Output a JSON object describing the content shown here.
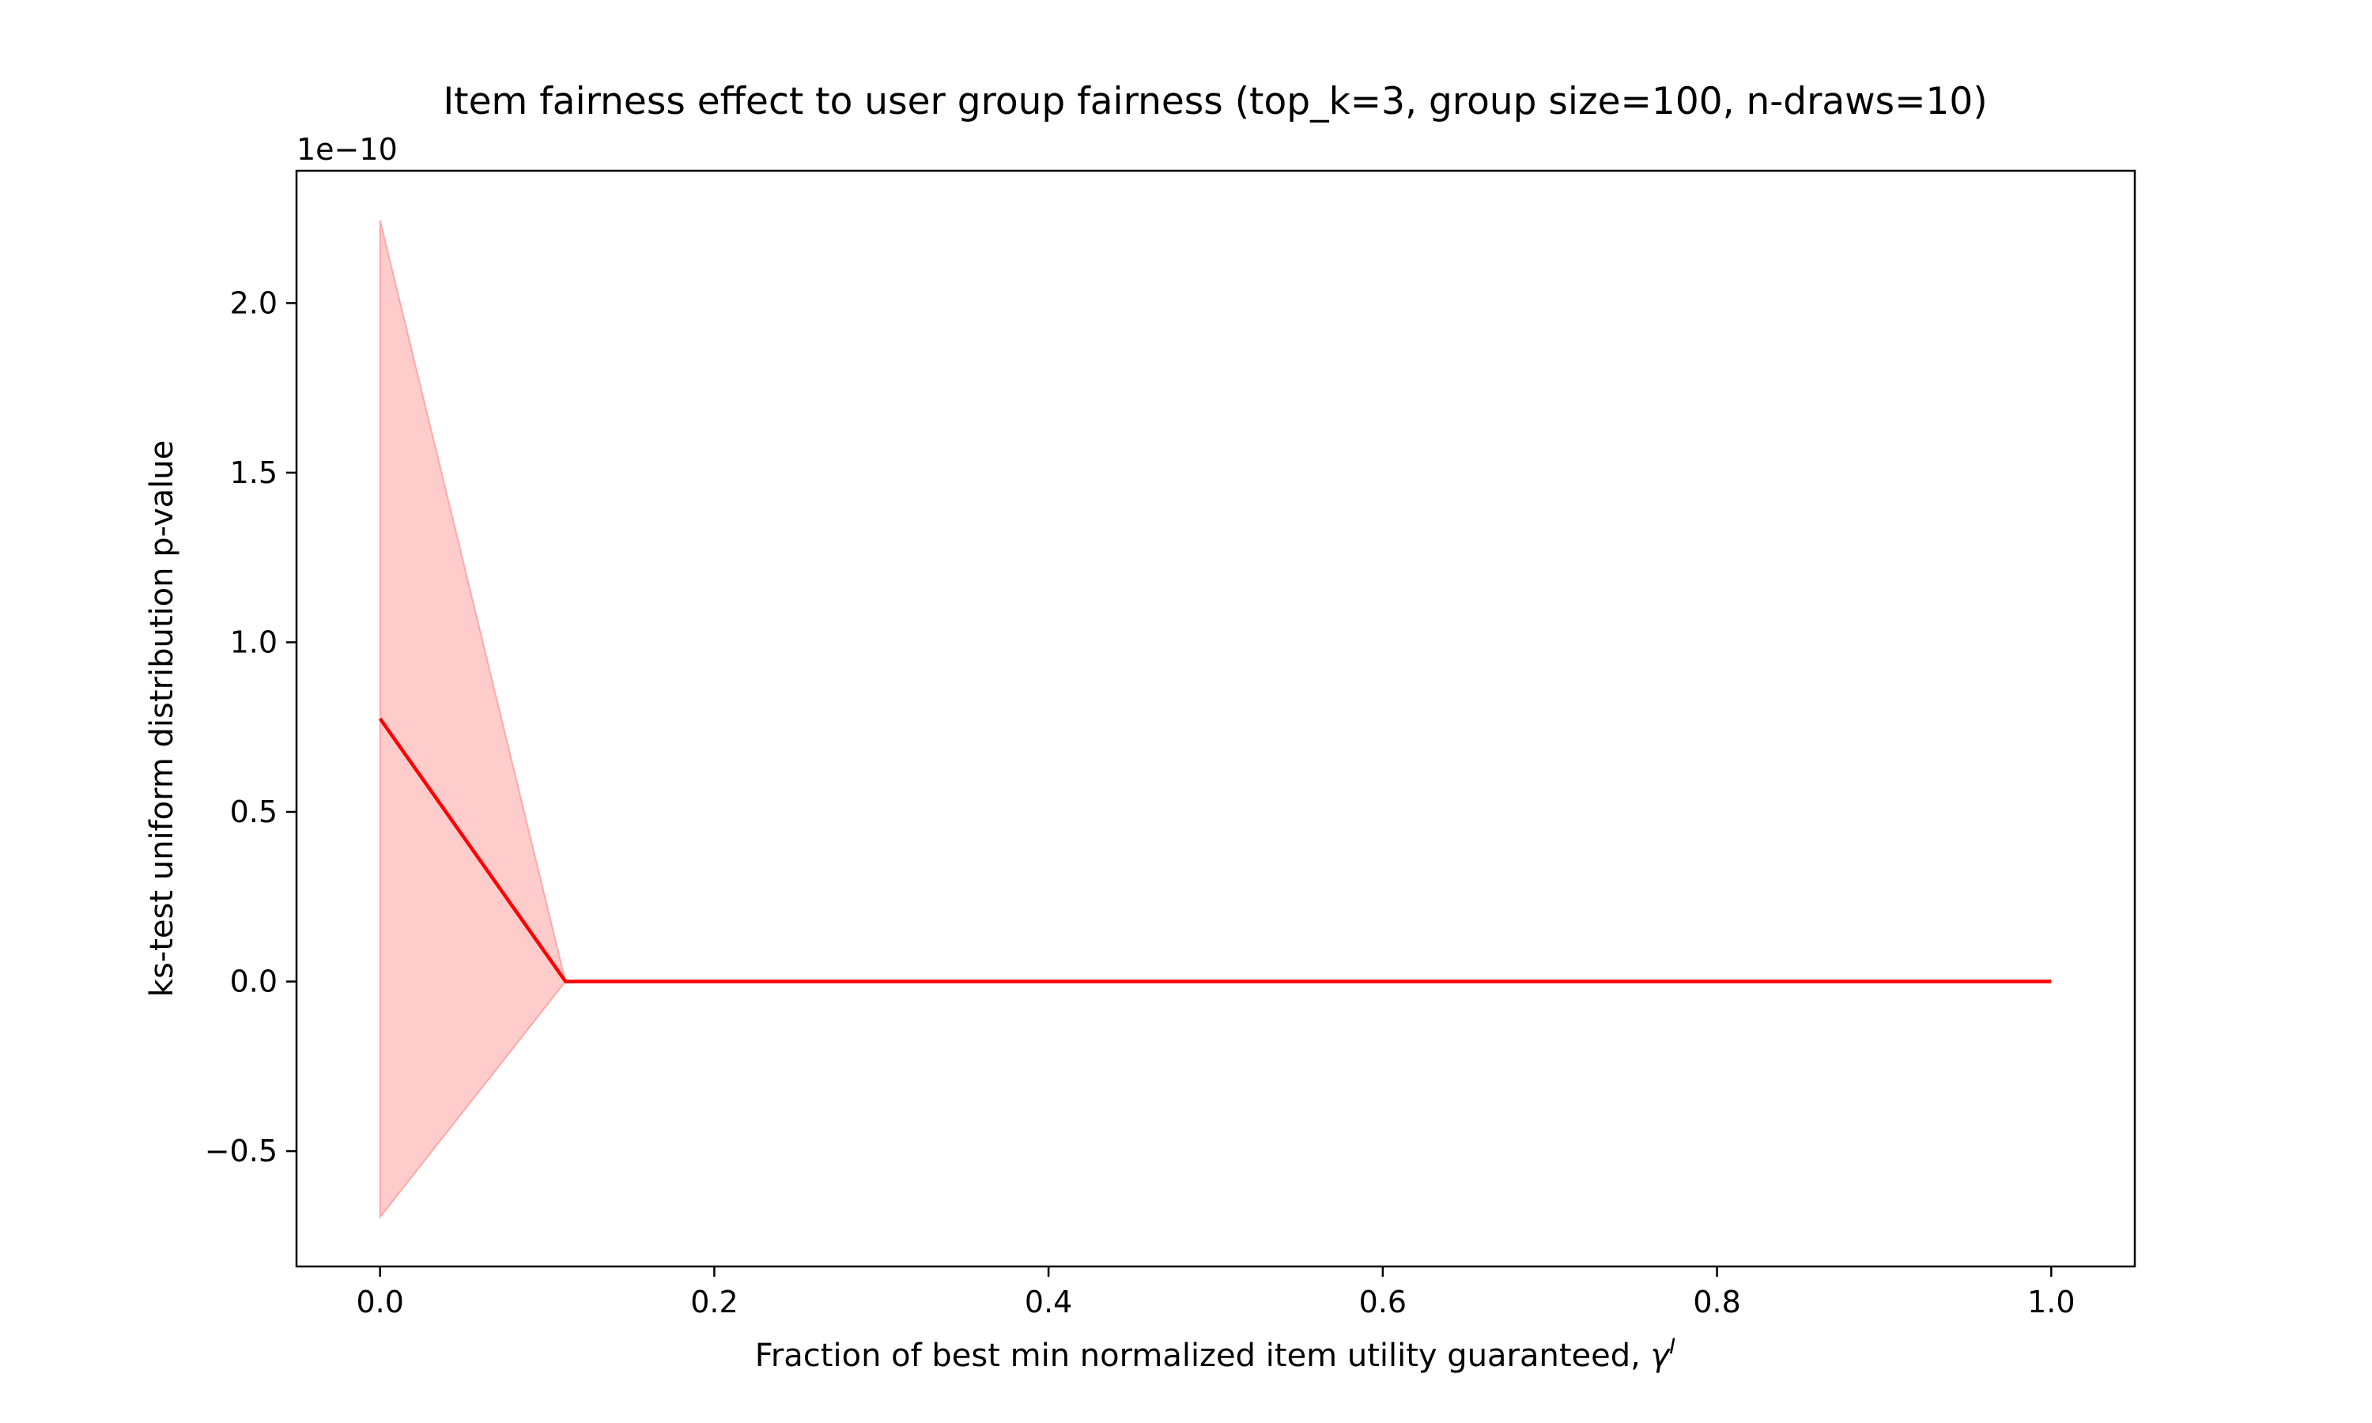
{
  "chart_data": {
    "type": "line",
    "title": "Item fairness effect to user group fairness (top_k=3, group size=100, n-draws=10)",
    "xlabel": "Fraction of best min normalized item utility guaranteed, ",
    "xlabel_symbol": "γ",
    "xlabel_superscript": "I",
    "ylabel": "ks-test uniform distribution p-value",
    "y_offset_text": "1e−10",
    "y_scale": 1e-10,
    "xlim": [
      -0.05,
      1.05
    ],
    "ylim": [
      -0.84,
      2.39
    ],
    "x_ticks": [
      0.0,
      0.2,
      0.4,
      0.6,
      0.8,
      1.0
    ],
    "x_tick_labels": [
      "0.0",
      "0.2",
      "0.4",
      "0.6",
      "0.8",
      "1.0"
    ],
    "y_ticks": [
      -0.5,
      0.0,
      0.5,
      1.0,
      1.5,
      2.0
    ],
    "y_tick_labels": [
      "−0.5",
      "0.0",
      "0.5",
      "1.0",
      "1.5",
      "2.0"
    ],
    "grid": false,
    "series": [
      {
        "x": [
          0.0,
          0.111,
          0.222,
          0.333,
          0.444,
          0.556,
          0.667,
          0.778,
          0.889,
          1.0
        ],
        "y": [
          0.775,
          0.0,
          0.0,
          0.0,
          0.0,
          0.0,
          0.0,
          0.0,
          0.0,
          0.0
        ],
        "y_upper": [
          2.245,
          0.0,
          0.0,
          0.0,
          0.0,
          0.0,
          0.0,
          0.0,
          0.0,
          0.0
        ],
        "y_lower": [
          -0.695,
          0.0,
          0.0,
          0.0,
          0.0,
          0.0,
          0.0,
          0.0,
          0.0,
          0.0
        ],
        "color": "#ff0000",
        "band_color": "#ff0000",
        "band_alpha": 0.2
      }
    ]
  }
}
